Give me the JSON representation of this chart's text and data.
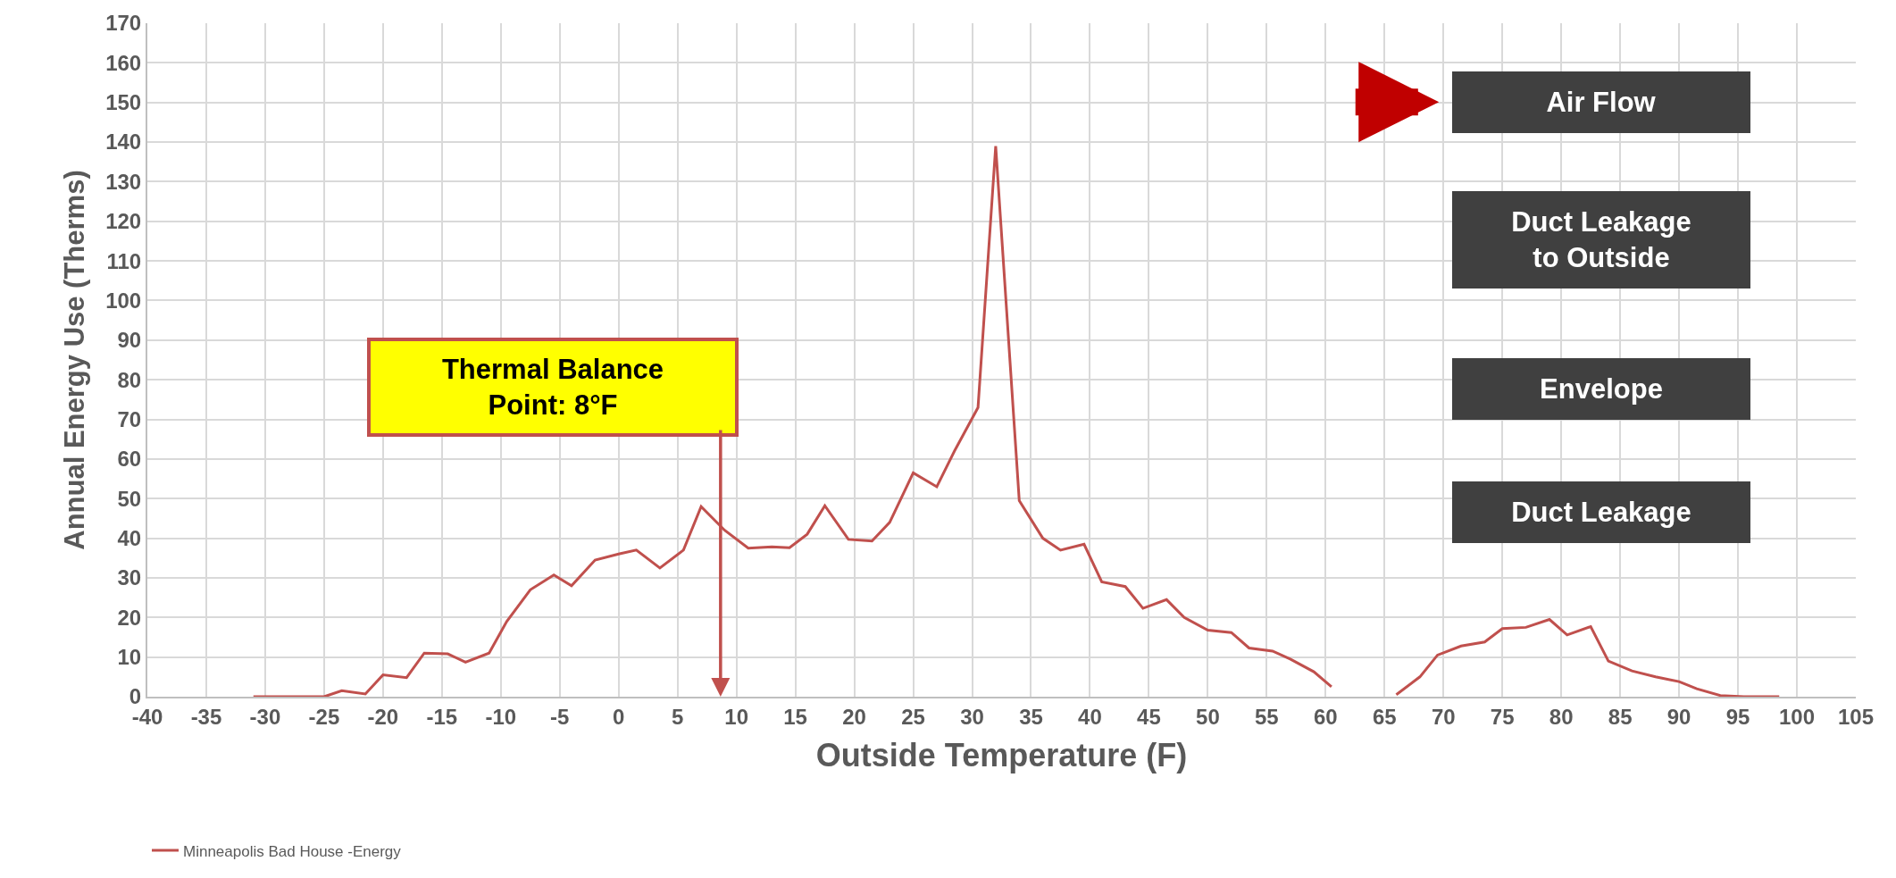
{
  "chart_data": {
    "type": "line",
    "xlabel": "Outside Temperature (F)",
    "ylabel": "Annual Energy Use (Therms)",
    "x": [
      -31,
      -29,
      -27,
      -25,
      -23.5,
      -21.5,
      -20,
      -18,
      -16.5,
      -14.5,
      -13,
      -11,
      -9.5,
      -7.5,
      -5.5,
      -4,
      -2,
      0,
      1.5,
      3.5,
      5.5,
      7,
      9,
      11,
      13,
      14.5,
      16,
      17.5,
      19.5,
      21.5,
      23,
      25,
      27,
      28.5,
      30.5,
      32,
      34,
      36,
      37.5,
      39.5,
      41,
      43,
      44.5,
      46.5,
      48,
      50,
      52,
      53.5,
      55.5,
      57,
      59,
      60.5,
      63,
      66,
      68,
      69.5,
      71.5,
      73.5,
      75,
      77,
      79,
      80.5,
      82.5,
      84,
      86,
      88,
      90,
      91.5,
      93.5,
      95.5,
      97,
      98.5
    ],
    "series": [
      {
        "name": "Minneapolis Bad House -Energy",
        "color": "#c0504d",
        "values": [
          0,
          0,
          0,
          0,
          1.5,
          0.7,
          5.5,
          4.8,
          11,
          10.8,
          8.7,
          11,
          19,
          27,
          30.7,
          28,
          34.5,
          36,
          37,
          32.5,
          37,
          48,
          42,
          37.5,
          37.8,
          37.6,
          41,
          48.2,
          39.7,
          39.3,
          44,
          56.5,
          53,
          62,
          73,
          139,
          49.5,
          40,
          37,
          38.5,
          29,
          27.8,
          22.3,
          24.5,
          20,
          16.8,
          16.2,
          12.3,
          11.5,
          9.5,
          6.3,
          2.5,
          null,
          0.5,
          5,
          10.5,
          12.8,
          13.8,
          17.2,
          17.5,
          19.5,
          15.6,
          17.7,
          9,
          6.5,
          5,
          3.8,
          2,
          0.3,
          0,
          0,
          0
        ]
      }
    ],
    "xlim": [
      -40,
      105
    ],
    "xticks": [
      -40,
      -35,
      -30,
      -25,
      -20,
      -15,
      -10,
      -5,
      0,
      5,
      10,
      15,
      20,
      25,
      30,
      35,
      40,
      45,
      50,
      55,
      60,
      65,
      70,
      75,
      80,
      85,
      90,
      95,
      100,
      105
    ],
    "ylim": [
      0,
      170
    ],
    "yticks": [
      0,
      10,
      20,
      30,
      40,
      50,
      60,
      70,
      80,
      90,
      100,
      110,
      120,
      130,
      140,
      150,
      160,
      170
    ],
    "grid": true,
    "legend": "bottom",
    "marker": "none",
    "line_style": "solid",
    "annotations": [
      "Thermal Balance\nPoint: 8°F",
      "Air Flow",
      "Duct Leakage\nto Outside",
      "Envelope",
      "Duct Leakage"
    ]
  }
}
